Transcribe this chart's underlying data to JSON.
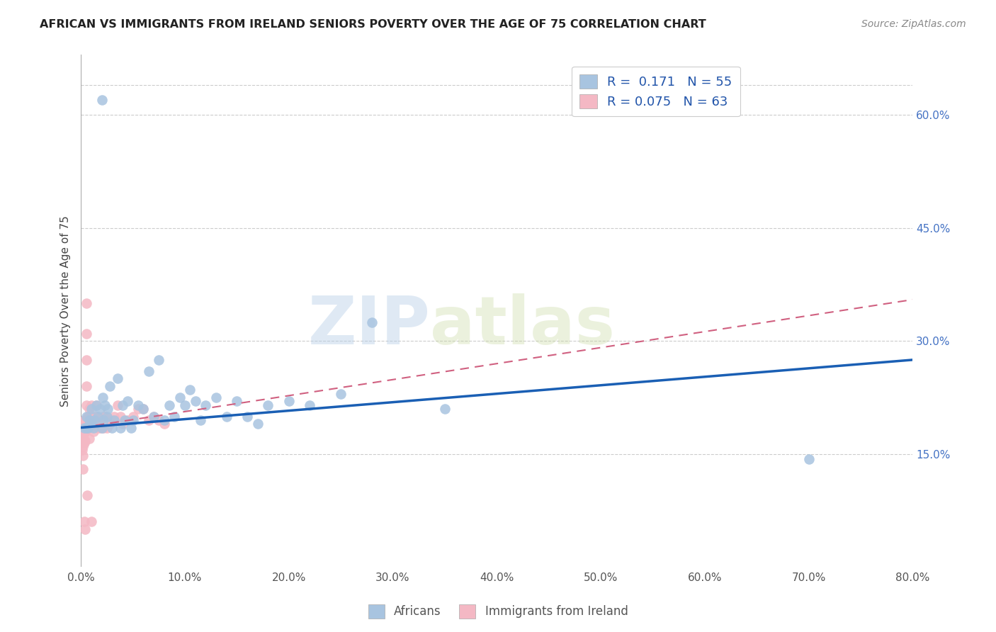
{
  "title": "AFRICAN VS IMMIGRANTS FROM IRELAND SENIORS POVERTY OVER THE AGE OF 75 CORRELATION CHART",
  "source": "Source: ZipAtlas.com",
  "ylabel": "Seniors Poverty Over the Age of 75",
  "xlim": [
    0,
    0.8
  ],
  "ylim": [
    0,
    0.68
  ],
  "yticks_right": [
    0.15,
    0.3,
    0.45,
    0.6
  ],
  "african_R": 0.171,
  "african_N": 55,
  "ireland_R": 0.075,
  "ireland_N": 63,
  "african_color": "#a8c4e0",
  "ireland_color": "#f4b8c4",
  "african_line_color": "#1a5fb4",
  "ireland_line_color": "#d06080",
  "background_color": "#ffffff",
  "grid_color": "#cccccc",
  "watermark_text": "ZIPatlas",
  "legend_label_african": "Africans",
  "legend_label_ireland": "Immigrants from Ireland",
  "african_x": [
    0.003,
    0.005,
    0.005,
    0.007,
    0.008,
    0.01,
    0.01,
    0.012,
    0.013,
    0.015,
    0.016,
    0.018,
    0.02,
    0.021,
    0.022,
    0.023,
    0.025,
    0.026,
    0.028,
    0.03,
    0.032,
    0.035,
    0.038,
    0.04,
    0.042,
    0.045,
    0.048,
    0.05,
    0.055,
    0.06,
    0.065,
    0.07,
    0.075,
    0.08,
    0.085,
    0.09,
    0.095,
    0.1,
    0.105,
    0.11,
    0.115,
    0.12,
    0.13,
    0.14,
    0.15,
    0.16,
    0.17,
    0.18,
    0.2,
    0.22,
    0.25,
    0.28,
    0.35,
    0.7,
    0.02
  ],
  "african_y": [
    0.185,
    0.185,
    0.2,
    0.185,
    0.195,
    0.21,
    0.19,
    0.185,
    0.195,
    0.215,
    0.2,
    0.21,
    0.185,
    0.225,
    0.195,
    0.215,
    0.2,
    0.21,
    0.24,
    0.185,
    0.195,
    0.25,
    0.185,
    0.215,
    0.195,
    0.22,
    0.185,
    0.195,
    0.215,
    0.21,
    0.26,
    0.2,
    0.275,
    0.195,
    0.215,
    0.2,
    0.225,
    0.215,
    0.235,
    0.22,
    0.195,
    0.215,
    0.225,
    0.2,
    0.22,
    0.2,
    0.19,
    0.215,
    0.22,
    0.215,
    0.23,
    0.325,
    0.21,
    0.143,
    0.62
  ],
  "ireland_x": [
    0.001,
    0.001,
    0.001,
    0.001,
    0.002,
    0.002,
    0.002,
    0.002,
    0.002,
    0.002,
    0.003,
    0.003,
    0.003,
    0.003,
    0.004,
    0.004,
    0.004,
    0.004,
    0.005,
    0.005,
    0.005,
    0.005,
    0.005,
    0.005,
    0.006,
    0.006,
    0.007,
    0.007,
    0.008,
    0.008,
    0.009,
    0.01,
    0.01,
    0.01,
    0.011,
    0.012,
    0.013,
    0.014,
    0.015,
    0.016,
    0.017,
    0.018,
    0.019,
    0.02,
    0.021,
    0.022,
    0.024,
    0.025,
    0.026,
    0.028,
    0.03,
    0.032,
    0.035,
    0.038,
    0.04,
    0.045,
    0.05,
    0.055,
    0.06,
    0.065,
    0.07,
    0.075,
    0.08
  ],
  "ireland_y": [
    0.185,
    0.175,
    0.165,
    0.155,
    0.19,
    0.18,
    0.17,
    0.16,
    0.148,
    0.13,
    0.195,
    0.178,
    0.165,
    0.06,
    0.195,
    0.18,
    0.168,
    0.05,
    0.35,
    0.31,
    0.275,
    0.24,
    0.215,
    0.195,
    0.185,
    0.095,
    0.2,
    0.185,
    0.21,
    0.17,
    0.185,
    0.215,
    0.2,
    0.06,
    0.195,
    0.18,
    0.195,
    0.2,
    0.215,
    0.2,
    0.185,
    0.195,
    0.185,
    0.195,
    0.2,
    0.185,
    0.2,
    0.185,
    0.195,
    0.19,
    0.195,
    0.2,
    0.215,
    0.2,
    0.19,
    0.195,
    0.2,
    0.21,
    0.21,
    0.195,
    0.2,
    0.195,
    0.19
  ],
  "af_line_x0": 0.0,
  "af_line_x1": 0.8,
  "af_line_y0": 0.185,
  "af_line_y1": 0.275,
  "ir_line_x0": 0.0,
  "ir_line_x1": 0.8,
  "ir_line_y0": 0.185,
  "ir_line_y1": 0.355
}
